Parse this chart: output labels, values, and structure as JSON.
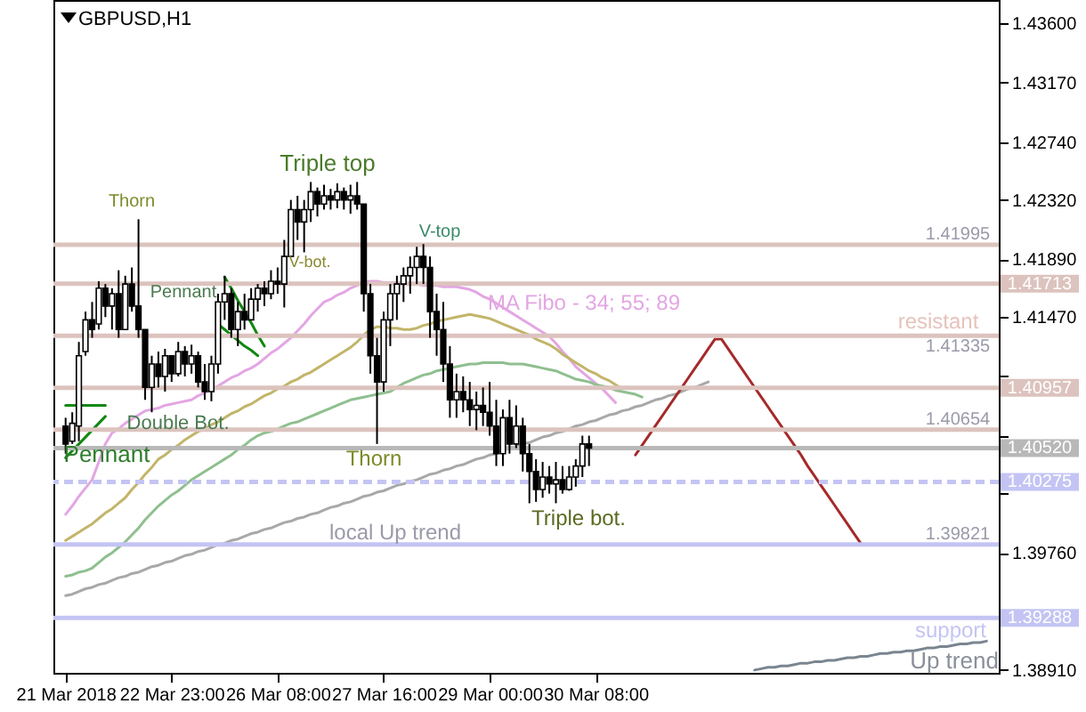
{
  "chart_data": {
    "type": "candlestick",
    "title": "GBPUSD,H1",
    "color": "#000000",
    "categories": [
      "21 Mar 2018",
      null,
      null,
      null,
      null,
      null,
      null,
      null,
      null,
      null,
      null,
      null,
      null,
      null,
      null,
      null,
      "22 Mar 23:00",
      null,
      null,
      null,
      null,
      null,
      null,
      null,
      null,
      null,
      null,
      null,
      null,
      null,
      null,
      null,
      "26 Mar 08:00",
      null,
      null,
      null,
      null,
      null,
      null,
      null,
      null,
      null,
      null,
      null,
      null,
      null,
      null,
      null,
      "27 Mar 16:00",
      null,
      null,
      null,
      null,
      null,
      null,
      null,
      null,
      null,
      null,
      null,
      null,
      null,
      null,
      null,
      "29 Mar 00:00",
      null,
      null,
      null,
      null,
      null,
      null,
      null,
      null,
      null,
      null,
      null,
      null,
      null,
      null,
      null,
      "30 Mar 08:00",
      null,
      null,
      null,
      null,
      null,
      null,
      null,
      null,
      null,
      null,
      null,
      null,
      null,
      null,
      null,
      null,
      null,
      null,
      null,
      null,
      null,
      null,
      null,
      null,
      null,
      null,
      null,
      null,
      null,
      null,
      null,
      null,
      null,
      null,
      null,
      null,
      null,
      null,
      null,
      null,
      null,
      null,
      null,
      null,
      null,
      null,
      null,
      null,
      null,
      null,
      null,
      null,
      null,
      null,
      null,
      null,
      null,
      null,
      null
    ],
    "ohlc": [
      [
        1.4068,
        1.4074,
        1.4048,
        1.4055
      ],
      [
        1.4057,
        1.4078,
        1.4055,
        1.407
      ],
      [
        1.4068,
        1.4129,
        1.4057,
        1.4119
      ],
      [
        1.4122,
        1.4151,
        1.4119,
        1.4145
      ],
      [
        1.4145,
        1.4158,
        1.4132,
        1.4138
      ],
      [
        1.4142,
        1.4173,
        1.4138,
        1.4168
      ],
      [
        1.4168,
        1.4171,
        1.4147,
        1.4155
      ],
      [
        1.4155,
        1.4168,
        1.4138,
        1.4164
      ],
      [
        1.4164,
        1.4181,
        1.4132,
        1.4138
      ],
      [
        1.4138,
        1.4177,
        1.4138,
        1.4171
      ],
      [
        1.4171,
        1.4183,
        1.4151,
        1.4155
      ],
      [
        1.4155,
        1.4218,
        1.4132,
        1.4138
      ],
      [
        1.4138,
        1.4138,
        1.4087,
        1.4096
      ],
      [
        1.4096,
        1.4119,
        1.4078,
        1.4113
      ],
      [
        1.4113,
        1.4122,
        1.4096,
        1.4104
      ],
      [
        1.4104,
        1.4124,
        1.4093,
        1.4119
      ],
      [
        1.4119,
        1.4119,
        1.41,
        1.4106
      ],
      [
        1.4106,
        1.4129,
        1.4104,
        1.4122
      ],
      [
        1.4122,
        1.4126,
        1.4104,
        1.4113
      ],
      [
        1.4113,
        1.4127,
        1.4106,
        1.4119
      ],
      [
        1.4119,
        1.4122,
        1.4096,
        1.41
      ],
      [
        1.41,
        1.4113,
        1.4087,
        1.4093
      ],
      [
        1.4093,
        1.4119,
        1.4086,
        1.4113
      ],
      [
        1.4113,
        1.4164,
        1.4106,
        1.4158
      ],
      [
        1.4158,
        1.4177,
        1.4145,
        1.4164
      ],
      [
        1.4164,
        1.4168,
        1.4132,
        1.4138
      ],
      [
        1.4138,
        1.4158,
        1.4126,
        1.4151
      ],
      [
        1.4151,
        1.4164,
        1.4138,
        1.4145
      ],
      [
        1.4145,
        1.4168,
        1.4145,
        1.416
      ],
      [
        1.416,
        1.4171,
        1.4151,
        1.4168
      ],
      [
        1.4168,
        1.4173,
        1.4155,
        1.4164
      ],
      [
        1.4164,
        1.4181,
        1.416,
        1.4173
      ],
      [
        1.4173,
        1.4183,
        1.4164,
        1.4171
      ],
      [
        1.4171,
        1.4203,
        1.4154,
        1.4191
      ],
      [
        1.4191,
        1.4232,
        1.4191,
        1.4225
      ],
      [
        1.4225,
        1.4235,
        1.4203,
        1.4216
      ],
      [
        1.4216,
        1.4232,
        1.4194,
        1.4225
      ],
      [
        1.4225,
        1.4245,
        1.4216,
        1.4238
      ],
      [
        1.4238,
        1.4241,
        1.422,
        1.4229
      ],
      [
        1.4229,
        1.4243,
        1.4225,
        1.4235
      ],
      [
        1.4235,
        1.424,
        1.4225,
        1.4232
      ],
      [
        1.4232,
        1.4244,
        1.4226,
        1.4238
      ],
      [
        1.4238,
        1.4241,
        1.4225,
        1.4232
      ],
      [
        1.4232,
        1.4243,
        1.4222,
        1.4235
      ],
      [
        1.4235,
        1.4245,
        1.4225,
        1.4229
      ],
      [
        1.4229,
        1.4229,
        1.4151,
        1.4164
      ],
      [
        1.4164,
        1.4171,
        1.4106,
        1.4119
      ],
      [
        1.4119,
        1.4132,
        1.4055,
        1.41
      ],
      [
        1.41,
        1.4151,
        1.4093,
        1.4145
      ],
      [
        1.4145,
        1.4171,
        1.4126,
        1.4164
      ],
      [
        1.4164,
        1.4177,
        1.4145,
        1.4171
      ],
      [
        1.4171,
        1.4183,
        1.4158,
        1.4177
      ],
      [
        1.4177,
        1.4191,
        1.4164,
        1.4183
      ],
      [
        1.4183,
        1.4198,
        1.4171,
        1.4191
      ],
      [
        1.4191,
        1.42,
        1.4171,
        1.4183
      ],
      [
        1.4183,
        1.4191,
        1.4132,
        1.4151
      ],
      [
        1.4151,
        1.4164,
        1.4119,
        1.4138
      ],
      [
        1.4138,
        1.4158,
        1.41,
        1.4113
      ],
      [
        1.4113,
        1.4126,
        1.4074,
        1.4087
      ],
      [
        1.4087,
        1.4106,
        1.4074,
        1.4093
      ],
      [
        1.4093,
        1.4104,
        1.4078,
        1.4087
      ],
      [
        1.4087,
        1.41,
        1.4068,
        1.408
      ],
      [
        1.408,
        1.4093,
        1.4065,
        1.4083
      ],
      [
        1.4083,
        1.4096,
        1.4068,
        1.4078
      ],
      [
        1.4078,
        1.41,
        1.4061,
        1.4068
      ],
      [
        1.4068,
        1.4087,
        1.4039,
        1.4048
      ],
      [
        1.4048,
        1.408,
        1.4039,
        1.4074
      ],
      [
        1.4074,
        1.4087,
        1.4048,
        1.4055
      ],
      [
        1.4055,
        1.4083,
        1.4052,
        1.4068
      ],
      [
        1.4068,
        1.4074,
        1.4035,
        1.4048
      ],
      [
        1.4048,
        1.4055,
        1.4012,
        1.4035
      ],
      [
        1.4035,
        1.4044,
        1.4013,
        1.4022
      ],
      [
        1.4022,
        1.4042,
        1.4016,
        1.4031
      ],
      [
        1.4031,
        1.4039,
        1.4019,
        1.4026
      ],
      [
        1.4026,
        1.4042,
        1.4012,
        1.4029
      ],
      [
        1.4029,
        1.4039,
        1.4019,
        1.4022
      ],
      [
        1.4022,
        1.4039,
        1.4021,
        1.4031
      ],
      [
        1.4031,
        1.4044,
        1.4024,
        1.4039
      ],
      [
        1.4039,
        1.4061,
        1.4031,
        1.4055
      ],
      [
        1.4055,
        1.4061,
        1.4039,
        1.4052
      ],
      null,
      null,
      null,
      null,
      null,
      null,
      null,
      null,
      null,
      null,
      null,
      null,
      null,
      null,
      null,
      null,
      null,
      null,
      null,
      null,
      null,
      null,
      null,
      null,
      null,
      null,
      null,
      null,
      null,
      null,
      null,
      null,
      null,
      null,
      null,
      null,
      null,
      null,
      null,
      null,
      null,
      null,
      null,
      null,
      null,
      null,
      null,
      null,
      null,
      null,
      null,
      null,
      null,
      null,
      null,
      null,
      null,
      null,
      null,
      null
    ],
    "series": [
      {
        "type": "line",
        "color": "#e3a6e3",
        "values": [
          1.4004,
          1.401,
          1.4017,
          1.4023,
          1.4029,
          1.4042,
          1.4055,
          1.4063,
          1.4066,
          1.407,
          1.4073,
          1.4076,
          1.4079,
          1.408,
          1.4081,
          1.4083,
          1.4084,
          1.4085,
          1.4086,
          1.4087,
          1.409,
          1.4092,
          1.4095,
          1.4097,
          1.41,
          1.4103,
          1.4105,
          1.4108,
          1.411,
          1.4113,
          1.4117,
          1.4121,
          1.4124,
          1.4128,
          1.4132,
          1.4137,
          1.4142,
          1.4148,
          1.4153,
          1.4158,
          1.416,
          1.4163,
          1.4165,
          1.4168,
          1.417,
          1.4172,
          1.4173,
          1.4173,
          1.4172,
          1.4172,
          1.4172,
          1.4171,
          1.4171,
          1.4171,
          1.417,
          1.417,
          1.417,
          1.4169,
          1.4169,
          1.4169,
          1.4168,
          1.4167,
          1.4165,
          1.4162,
          1.416,
          1.4157,
          1.4154,
          1.4151,
          1.4148,
          1.4145,
          1.4142,
          1.4139,
          1.4136,
          1.4133,
          1.4128,
          1.4122,
          1.4117,
          1.4111,
          1.4107,
          1.4103,
          1.4099,
          1.4095,
          1.409,
          1.4085,
          null,
          null,
          null,
          null,
          null,
          null,
          null,
          null,
          null,
          null,
          null,
          null,
          null,
          null,
          null,
          null,
          null,
          null,
          null,
          null,
          null,
          null,
          null,
          null,
          null,
          null,
          null,
          null,
          null,
          null,
          null,
          null,
          null,
          null,
          null,
          null,
          null,
          null,
          null,
          null,
          null,
          null,
          null,
          null,
          null,
          null,
          null,
          null,
          null,
          null,
          null,
          null,
          null,
          null,
          null,
          null
        ]
      },
      {
        "type": "line",
        "color": "#c2b56a",
        "values": [
          1.3985,
          1.3988,
          1.3991,
          1.3994,
          1.3997,
          1.4001,
          1.4005,
          1.4008,
          1.4012,
          1.4016,
          1.4022,
          1.4027,
          1.4033,
          1.4038,
          1.4044,
          1.4047,
          1.4051,
          1.4054,
          1.4058,
          1.4061,
          1.4064,
          1.4066,
          1.4069,
          1.4071,
          1.4074,
          1.4077,
          1.4079,
          1.4082,
          1.4084,
          1.4087,
          1.409,
          1.4092,
          1.4095,
          1.4097,
          1.41,
          1.4102,
          1.4105,
          1.4107,
          1.411,
          1.4113,
          1.4116,
          1.4119,
          1.4122,
          1.4125,
          1.4129,
          1.4134,
          1.4138,
          1.414,
          1.414,
          1.4139,
          1.4139,
          1.4138,
          1.4138,
          1.4139,
          1.4141,
          1.4142,
          1.4144,
          1.4145,
          1.4146,
          1.4147,
          1.4148,
          1.4149,
          1.4148,
          1.4147,
          1.4146,
          1.4144,
          1.4142,
          1.414,
          1.4138,
          1.4136,
          1.4134,
          1.4131,
          1.4129,
          1.4127,
          1.4124,
          1.412,
          1.4117,
          1.4114,
          1.4111,
          1.4108,
          1.4106,
          1.4103,
          1.4101,
          1.4098,
          1.4095,
          null,
          null,
          null,
          null,
          null,
          null,
          null,
          null,
          null,
          null,
          null,
          null,
          null,
          null,
          null,
          null,
          null,
          null,
          null,
          null,
          null,
          null,
          null,
          null,
          null,
          null,
          null,
          null,
          null,
          null,
          null,
          null,
          null,
          null,
          null,
          null,
          null,
          null,
          null,
          null,
          null,
          null,
          null,
          null,
          null,
          null,
          null,
          null,
          null,
          null,
          null,
          null,
          null,
          null,
          null
        ]
      },
      {
        "type": "line",
        "color": "#8fbf8f",
        "values": [
          1.3959,
          1.396,
          1.3962,
          1.3963,
          1.3965,
          1.3969,
          1.3973,
          1.3976,
          1.398,
          1.3984,
          1.3989,
          1.3994,
          1.4,
          1.4005,
          1.401,
          1.4014,
          1.4018,
          1.4021,
          1.4025,
          1.4029,
          1.4032,
          1.4035,
          1.4038,
          1.4041,
          1.4044,
          1.4047,
          1.4051,
          1.4054,
          1.4058,
          1.4061,
          1.4063,
          1.4064,
          1.4066,
          1.4068,
          1.407,
          1.4071,
          1.4073,
          1.4075,
          1.4077,
          1.4079,
          1.4081,
          1.4083,
          1.4085,
          1.4087,
          1.4088,
          1.4089,
          1.409,
          1.4091,
          1.4092,
          1.4093,
          1.4096,
          1.4099,
          1.4101,
          1.4103,
          1.4105,
          1.4106,
          1.4108,
          1.4109,
          1.411,
          1.4111,
          1.4112,
          1.4113,
          1.4113,
          1.4114,
          1.4114,
          1.4114,
          1.4114,
          1.4113,
          1.4113,
          1.4113,
          1.4112,
          1.4111,
          1.411,
          1.4109,
          1.4108,
          1.4106,
          1.4104,
          1.4102,
          1.4101,
          1.41,
          1.4098,
          1.4097,
          1.4096,
          1.4094,
          1.4093,
          1.4092,
          1.4091,
          1.4089,
          null,
          null,
          null,
          null,
          null,
          null,
          null,
          null,
          null,
          null,
          null,
          null,
          null,
          null,
          null,
          null,
          null,
          null,
          null,
          null,
          null,
          null,
          null,
          null,
          null,
          null,
          null,
          null,
          null,
          null,
          null,
          null,
          null,
          null,
          null,
          null,
          null,
          null,
          null,
          null,
          null,
          null,
          null,
          null,
          null,
          null,
          null,
          null,
          null,
          null,
          null,
          null
        ]
      },
      {
        "type": "line",
        "color": "#a8a8a8",
        "values": [
          1.3945,
          1.3946,
          1.3948,
          1.395,
          1.3951,
          1.3953,
          1.3954,
          1.3956,
          1.3958,
          1.3959,
          1.3961,
          1.3962,
          1.3964,
          1.3966,
          1.3967,
          1.3969,
          1.397,
          1.3972,
          1.3974,
          1.3975,
          1.3977,
          1.3978,
          1.398,
          1.3982,
          1.3983,
          1.3985,
          1.3986,
          1.3988,
          1.399,
          1.3991,
          1.3993,
          1.3994,
          1.3996,
          1.3998,
          1.3999,
          1.4001,
          1.4002,
          1.4004,
          1.4005,
          1.4007,
          1.4009,
          1.401,
          1.4012,
          1.4013,
          1.4015,
          1.4017,
          1.4018,
          1.402,
          1.4021,
          1.4023,
          1.4025,
          1.4026,
          1.4028,
          1.4029,
          1.4031,
          1.4033,
          1.4034,
          1.4036,
          1.4037,
          1.4039,
          1.404,
          1.4042,
          1.4044,
          1.4045,
          1.4047,
          1.4048,
          1.405,
          1.4052,
          1.4053,
          1.4055,
          1.4056,
          1.4058,
          1.406,
          1.4061,
          1.4063,
          1.4064,
          1.4066,
          1.4068,
          1.4069,
          1.4071,
          1.4072,
          1.4074,
          1.4076,
          1.4077,
          1.4079,
          1.408,
          1.4082,
          1.4083,
          1.4085,
          1.4087,
          1.4088,
          1.409,
          1.4091,
          1.4093,
          1.4095,
          1.4096,
          1.4098,
          1.41,
          null,
          null,
          null,
          null,
          null,
          null,
          null,
          null,
          null,
          null,
          null,
          null,
          null,
          null,
          null,
          null,
          null,
          null,
          null,
          null,
          null,
          null,
          null,
          null,
          null,
          null,
          null,
          null,
          null,
          null,
          null,
          null,
          null,
          null,
          null,
          null,
          null,
          null,
          null,
          null,
          null,
          null
        ]
      },
      {
        "type": "line",
        "color": "#7a8590",
        "values": [
          null,
          null,
          null,
          null,
          null,
          null,
          null,
          null,
          null,
          null,
          null,
          null,
          null,
          null,
          null,
          null,
          null,
          null,
          null,
          null,
          null,
          null,
          null,
          null,
          null,
          null,
          null,
          null,
          null,
          null,
          null,
          null,
          null,
          null,
          null,
          null,
          null,
          null,
          null,
          null,
          null,
          null,
          null,
          null,
          null,
          null,
          null,
          null,
          null,
          null,
          null,
          null,
          null,
          null,
          null,
          null,
          null,
          null,
          null,
          null,
          null,
          null,
          null,
          null,
          null,
          null,
          null,
          null,
          null,
          null,
          null,
          null,
          null,
          null,
          null,
          null,
          null,
          null,
          null,
          null,
          null,
          null,
          null,
          null,
          null,
          null,
          null,
          null,
          null,
          null,
          null,
          null,
          null,
          null,
          null,
          null,
          null,
          null,
          null,
          null,
          null,
          null,
          null,
          null,
          1.3891,
          1.3892,
          1.3893,
          1.3893,
          1.3894,
          1.3894,
          1.3895,
          1.3896,
          1.3896,
          1.3897,
          1.3897,
          1.3898,
          1.3898,
          1.3899,
          1.39,
          1.39,
          1.3901,
          1.3901,
          1.3902,
          1.3903,
          1.3903,
          1.3904,
          1.3904,
          1.3905,
          1.3905,
          1.3906,
          1.3907,
          1.3907,
          1.3908,
          1.3908,
          1.3909,
          1.391,
          1.391,
          1.3911,
          1.3911,
          1.3912
        ]
      },
      {
        "type": "line",
        "color": "#a52a2a",
        "values": [
          null,
          null,
          null,
          null,
          null,
          null,
          null,
          null,
          null,
          null,
          null,
          null,
          null,
          null,
          null,
          null,
          null,
          null,
          null,
          null,
          null,
          null,
          null,
          null,
          null,
          null,
          null,
          null,
          null,
          null,
          null,
          null,
          null,
          null,
          null,
          null,
          null,
          null,
          null,
          null,
          null,
          null,
          null,
          null,
          null,
          null,
          null,
          null,
          null,
          null,
          null,
          null,
          null,
          null,
          null,
          null,
          null,
          null,
          null,
          null,
          null,
          null,
          null,
          null,
          null,
          null,
          null,
          null,
          null,
          null,
          null,
          null,
          null,
          null,
          null,
          null,
          null,
          null,
          null,
          null,
          null,
          null,
          null,
          null,
          null,
          null,
          1.4047,
          1.4054,
          1.4061,
          1.4068,
          1.4075,
          1.4082,
          1.4089,
          1.4096,
          1.4103,
          1.411,
          1.4117,
          1.4124,
          1.4131,
          1.4131,
          1.4124,
          1.4117,
          1.411,
          1.4103,
          1.4096,
          1.4089,
          1.4082,
          1.4075,
          1.4068,
          1.4061,
          1.4054,
          1.4047,
          1.4039,
          1.4032,
          1.4025,
          1.4018,
          1.4011,
          1.4004,
          1.3997,
          1.399,
          1.3983,
          null,
          null,
          null,
          null,
          null,
          null,
          null,
          null,
          null,
          null,
          null,
          null,
          null,
          null,
          null,
          null,
          null,
          null,
          null
        ]
      },
      {
        "type": "line",
        "color": "#118811",
        "values": [
          1.4083,
          1.4083,
          1.4083,
          1.4083,
          1.4083,
          1.4083,
          1.4083,
          null,
          null,
          null,
          null,
          null,
          null,
          null,
          null,
          null,
          null,
          null,
          null,
          null,
          null,
          null,
          null,
          null,
          null,
          null,
          null,
          null,
          null,
          null,
          null,
          null,
          null,
          null,
          null,
          null,
          null,
          null,
          null,
          null,
          null,
          null,
          null,
          null,
          null,
          null,
          null,
          null,
          null,
          null,
          null,
          null,
          null,
          null,
          null,
          null,
          null,
          null,
          null,
          null,
          null,
          null,
          null,
          null,
          null,
          null,
          null,
          null,
          null,
          null,
          null,
          null,
          null,
          null,
          null,
          null,
          null,
          null,
          null,
          null,
          null,
          null,
          null,
          null,
          null,
          null,
          null,
          null,
          null,
          null,
          null,
          null,
          null,
          null,
          null,
          null,
          null,
          null,
          null,
          null,
          null,
          null,
          null,
          null,
          null,
          null,
          null,
          null,
          null,
          null,
          null,
          null,
          null,
          null,
          null,
          null,
          null,
          null,
          null,
          null,
          null,
          null,
          null,
          null,
          null,
          null,
          null,
          null,
          null,
          null,
          null,
          null,
          null,
          null,
          null,
          null,
          null,
          null,
          null,
          null
        ]
      },
      {
        "type": "line",
        "color": "#118811",
        "values": [
          1.4045,
          1.405,
          1.4055,
          1.406,
          1.4065,
          1.407,
          1.4075,
          null,
          null,
          null,
          null,
          null,
          null,
          null,
          null,
          null,
          null,
          null,
          null,
          null,
          null,
          null,
          null,
          null,
          null,
          null,
          null,
          null,
          null,
          null,
          null,
          null,
          null,
          null,
          null,
          null,
          null,
          null,
          null,
          null,
          null,
          null,
          null,
          null,
          null,
          null,
          null,
          null,
          null,
          null,
          null,
          null,
          null,
          null,
          null,
          null,
          null,
          null,
          null,
          null,
          null,
          null,
          null,
          null,
          null,
          null,
          null,
          null,
          null,
          null,
          null,
          null,
          null,
          null,
          null,
          null,
          null,
          null,
          null,
          null,
          null,
          null,
          null,
          null,
          null,
          null,
          null,
          null,
          null,
          null,
          null,
          null,
          null,
          null,
          null,
          null,
          null,
          null,
          null,
          null,
          null,
          null,
          null,
          null,
          null,
          null,
          null,
          null,
          null,
          null,
          null,
          null,
          null,
          null,
          null,
          null,
          null,
          null,
          null,
          null,
          null,
          null,
          null,
          null,
          null,
          null,
          null,
          null,
          null,
          null,
          null,
          null,
          null,
          null,
          null,
          null,
          null,
          null,
          null,
          null
        ]
      },
      {
        "type": "line",
        "color": "#118811",
        "values": [
          null,
          null,
          null,
          null,
          null,
          null,
          null,
          null,
          null,
          null,
          null,
          null,
          null,
          null,
          null,
          null,
          null,
          null,
          null,
          null,
          null,
          null,
          null,
          null,
          1.4176,
          1.4168,
          1.4159,
          1.4151,
          1.4143,
          1.4134,
          1.4126,
          null,
          null,
          null,
          null,
          null,
          null,
          null,
          null,
          null,
          null,
          null,
          null,
          null,
          null,
          null,
          null,
          null,
          null,
          null,
          null,
          null,
          null,
          null,
          null,
          null,
          null,
          null,
          null,
          null,
          null,
          null,
          null,
          null,
          null,
          null,
          null,
          null,
          null,
          null,
          null,
          null,
          null,
          null,
          null,
          null,
          null,
          null,
          null,
          null,
          null,
          null,
          null,
          null,
          null,
          null,
          null,
          null,
          null,
          null,
          null,
          null,
          null,
          null,
          null,
          null,
          null,
          null,
          null,
          null,
          null,
          null,
          null,
          null,
          null,
          null,
          null,
          null,
          null,
          null,
          null,
          null,
          null,
          null,
          null,
          null,
          null,
          null,
          null,
          null,
          null,
          null,
          null,
          null,
          null,
          null,
          null,
          null,
          null,
          null,
          null,
          null,
          null,
          null,
          null,
          null,
          null,
          null,
          null,
          null
        ]
      },
      {
        "type": "line",
        "color": "#118811",
        "values": [
          null,
          null,
          null,
          null,
          null,
          null,
          null,
          null,
          null,
          null,
          null,
          null,
          null,
          null,
          null,
          null,
          null,
          null,
          null,
          null,
          null,
          null,
          null,
          1.4142,
          1.4138,
          1.4134,
          1.413,
          1.4126,
          1.4123,
          1.4119,
          null,
          null,
          null,
          null,
          null,
          null,
          null,
          null,
          null,
          null,
          null,
          null,
          null,
          null,
          null,
          null,
          null,
          null,
          null,
          null,
          null,
          null,
          null,
          null,
          null,
          null,
          null,
          null,
          null,
          null,
          null,
          null,
          null,
          null,
          null,
          null,
          null,
          null,
          null,
          null,
          null,
          null,
          null,
          null,
          null,
          null,
          null,
          null,
          null,
          null,
          null,
          null,
          null,
          null,
          null,
          null,
          null,
          null,
          null,
          null,
          null,
          null,
          null,
          null,
          null,
          null,
          null,
          null,
          null,
          null,
          null,
          null,
          null,
          null,
          null,
          null,
          null,
          null,
          null,
          null,
          null,
          null,
          null,
          null,
          null,
          null,
          null,
          null,
          null,
          null,
          null,
          null,
          null,
          null,
          null,
          null,
          null,
          null,
          null,
          null,
          null,
          null,
          null,
          null,
          null,
          null,
          null,
          null,
          null,
          null
        ]
      }
    ],
    "ref_lines": [
      {
        "axis": "y",
        "value": 1.41995,
        "color": "#dcc3be"
      },
      {
        "axis": "y",
        "value": 1.41713,
        "label": "1.41713",
        "color": "#dcc3be"
      },
      {
        "axis": "y",
        "value": 1.41335,
        "color": "#dcc3be"
      },
      {
        "axis": "y",
        "value": 1.40957,
        "label": "1.40957",
        "color": "#dcc3be"
      },
      {
        "axis": "y",
        "value": 1.40654,
        "color": "#dcc3be"
      },
      {
        "axis": "y",
        "value": 1.4052,
        "label": "1.40520",
        "color": "#b8b8b8"
      },
      {
        "axis": "y",
        "value": 1.40275,
        "label": "1.40275",
        "color": "#c4c4f4",
        "line_style": "dashed"
      },
      {
        "axis": "y",
        "value": 1.39821,
        "color": "#c4c4f4"
      },
      {
        "axis": "y",
        "value": 1.39288,
        "label": "1.39288",
        "color": "#c4c4f4"
      }
    ],
    "annotations": [
      {
        "text": "Pennant",
        "y": 1.4052
      },
      {
        "text": "Thorn",
        "y": 1.4218
      },
      {
        "text": "Double Bot.",
        "y": 1.407
      },
      "Pennant",
      {
        "text": "Triple top",
        "y": 1.424
      },
      {
        "text": "V-bot.",
        "y": 1.4194
      },
      {
        "text": "V-top",
        "y": 1.42
      },
      {
        "text": "Thorn",
        "y": 1.4055
      },
      "MA Fibo - 34; 55; 89",
      "Triple bot.",
      {
        "text": "local  Up trend",
        "y": 1.39821
      },
      {
        "text": "resistant",
        "y": 1.41335
      },
      {
        "text": "1.41995",
        "y": 1.41995
      },
      {
        "text": "1.41335",
        "y": 1.41335
      },
      {
        "text": "1.40654",
        "y": 1.40654
      },
      {
        "text": "1.39821",
        "y": 1.39821
      },
      {
        "text": "support",
        "y": 1.39288
      },
      {
        "text": "Up trend",
        "y": 1.3908
      }
    ],
    "ylim": [
      1.3889,
      1.4377
    ],
    "yticks": [
      {
        "value": 1.436,
        "label": "1.43600"
      },
      {
        "value": 1.4317,
        "label": "1.43170"
      },
      {
        "value": 1.4274,
        "label": "1.42740"
      },
      {
        "value": 1.4232,
        "label": "1.42320"
      },
      {
        "value": 1.4189,
        "label": "1.41890"
      },
      {
        "value": 1.4147,
        "label": "1.41470"
      },
      {
        "value": 1.4104,
        "label": null
      },
      {
        "value": 1.4061,
        "label": null
      },
      {
        "value": 1.4019,
        "label": null
      },
      {
        "value": 1.3976,
        "label": "1.39760"
      },
      {
        "value": 1.3934,
        "label": null
      },
      {
        "value": 1.3891,
        "label": "1.38910"
      }
    ]
  }
}
